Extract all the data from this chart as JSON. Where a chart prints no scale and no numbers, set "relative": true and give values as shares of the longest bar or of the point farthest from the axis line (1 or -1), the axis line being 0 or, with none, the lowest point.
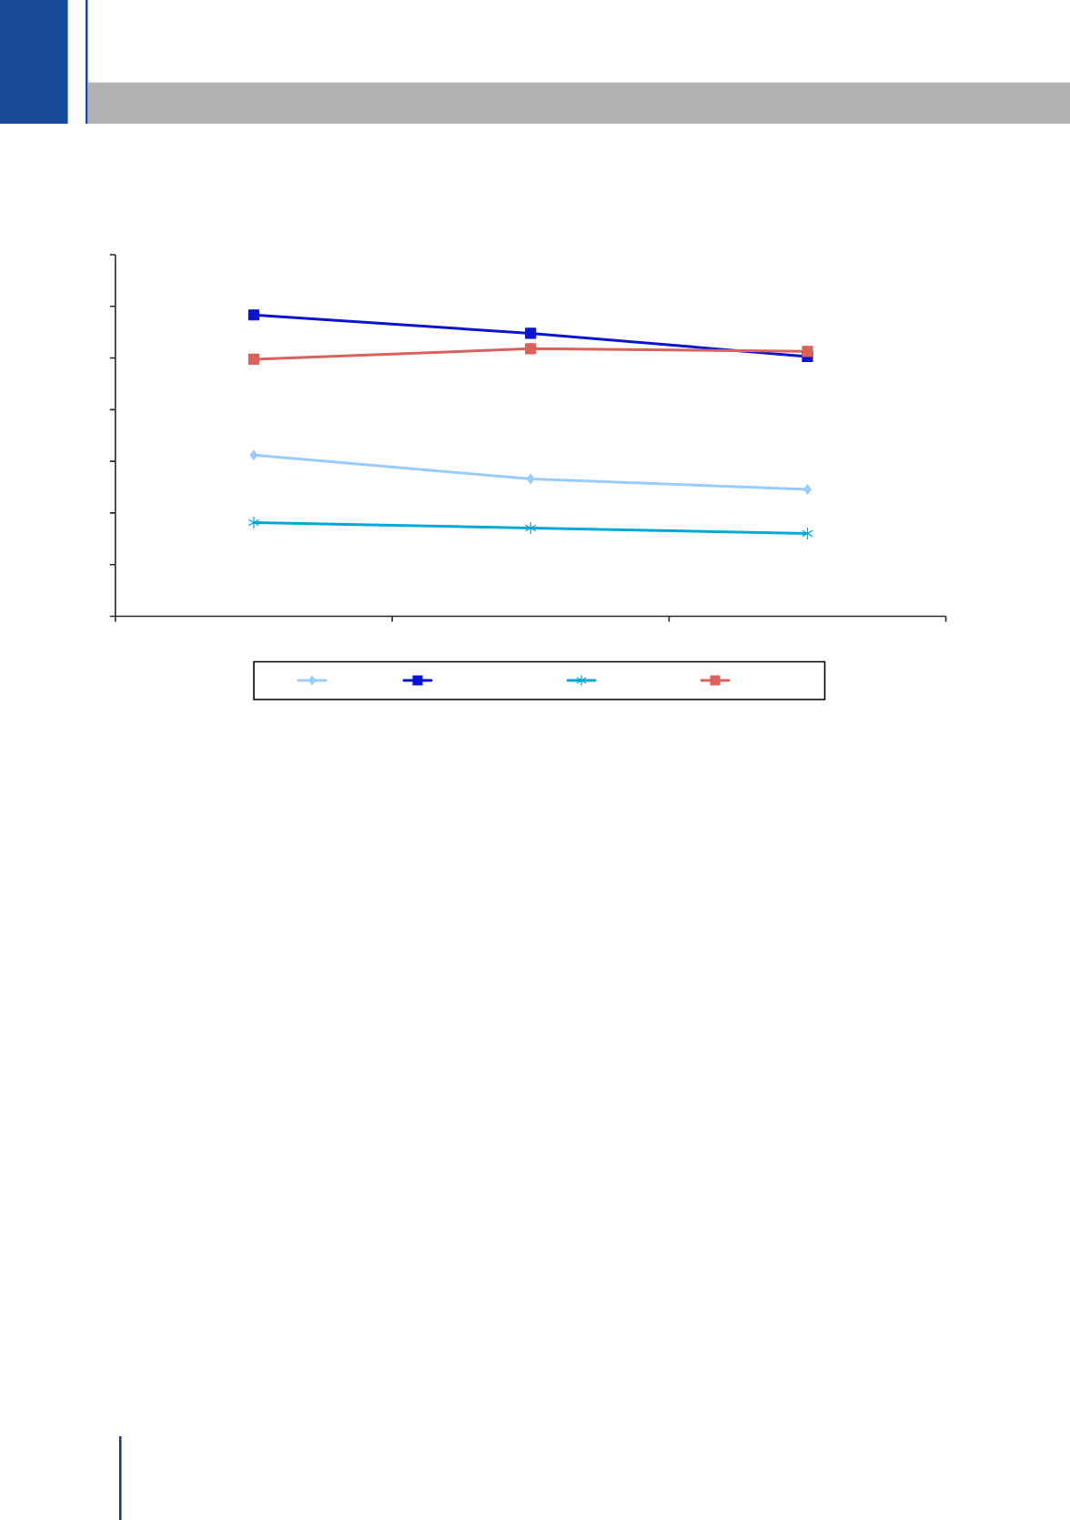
{
  "chart_data": {
    "type": "line",
    "relative": true,
    "categories": [
      null,
      null,
      null
    ],
    "series": [
      {
        "color": "#99ccff",
        "marker": "diamond",
        "values": [
          0.535,
          0.456,
          0.421
        ]
      },
      {
        "color": "#0a14cc",
        "marker": "square",
        "values": [
          1,
          0.939,
          0.862
        ]
      },
      {
        "color": "#00a8d8",
        "marker": "cross",
        "values": [
          0.311,
          0.293,
          0.275
        ]
      },
      {
        "color": "#d9625a",
        "marker": "square",
        "values": [
          0.853,
          0.888,
          0.879
        ]
      }
    ]
  }
}
